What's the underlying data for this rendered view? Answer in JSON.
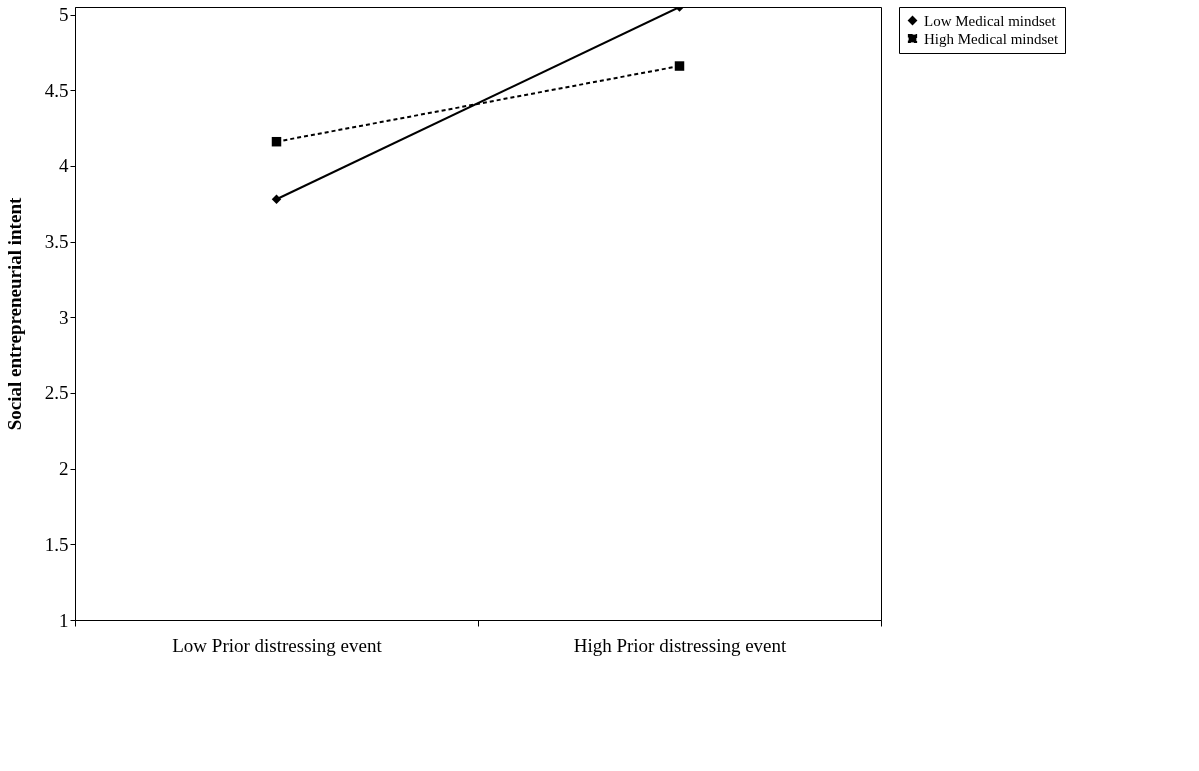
{
  "chart_data": {
    "type": "line",
    "ylabel": "Social entrepreneurial intent",
    "categories": [
      "Low Prior distressing event",
      "High Prior distressing event"
    ],
    "series": [
      {
        "name": "Low Medical mindset",
        "color": "#000000",
        "values": [
          3.78,
          5.05
        ],
        "marker": "diamond",
        "line_style": "solid"
      },
      {
        "name": "High Medical mindset",
        "color": "#000000",
        "values": [
          4.16,
          4.66
        ],
        "marker": "square",
        "line_style": "dashed"
      }
    ],
    "ylim": [
      1,
      5.05
    ],
    "yticks": [
      1,
      1.5,
      2,
      2.5,
      3,
      3.5,
      4,
      4.5,
      5
    ],
    "grid": false,
    "legend": "right"
  }
}
